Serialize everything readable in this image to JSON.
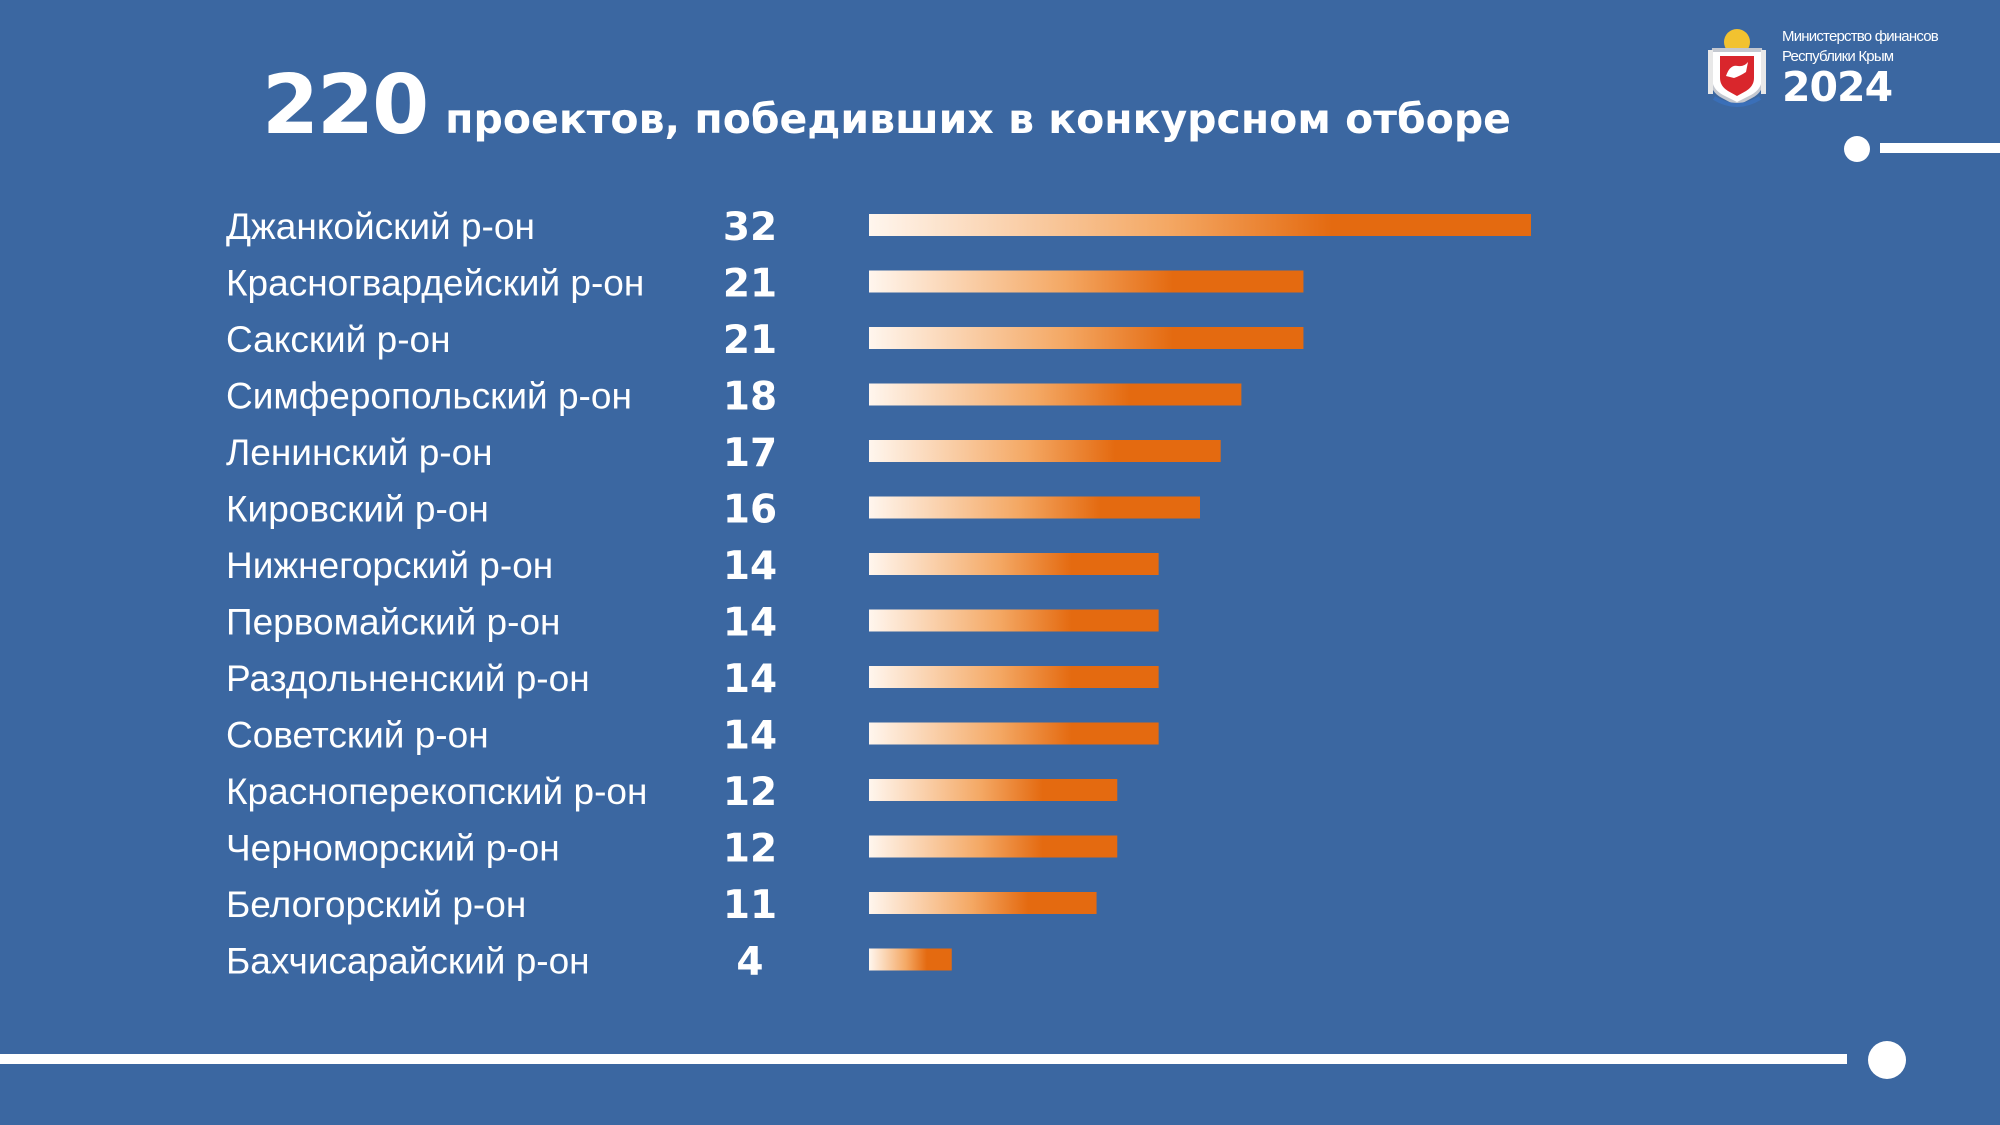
{
  "header": {
    "title_number": "220",
    "title_text": "проектов, победивших в конкурсном отборе",
    "ministry_line1": "Министерство финансов",
    "ministry_line2": "Республики Крым",
    "year": "2024",
    "logo_icon": "crimea-coat-of-arms-icon"
  },
  "colors": {
    "background": "#3b67a1",
    "bar_start": "#fff6ee",
    "bar_mid": "#f4a864",
    "bar_end": "#e46a10",
    "accent_lines": "#ffffff"
  },
  "chart_data": {
    "type": "bar",
    "orientation": "horizontal",
    "categories": [
      "Джанкойский р-он",
      "Красногвардейский р-он",
      "Сакский р-он",
      "Симферопольский р-он",
      "Ленинский р-он",
      "Кировский р-он",
      "Нижнегорский р-он",
      " Первомайский р-он",
      "Раздольненский р-он",
      "Советский р-он",
      "Красноперекопский р-он",
      "Черноморский р-он",
      "Белогорский р-он",
      "Бахчисарайский р-он"
    ],
    "values": [
      32,
      21,
      21,
      18,
      17,
      16,
      14,
      14,
      14,
      14,
      12,
      12,
      11,
      4
    ],
    "xlim": [
      0,
      32
    ],
    "grid": false,
    "legend": "none",
    "axes_visible": false,
    "data_labels": true
  }
}
